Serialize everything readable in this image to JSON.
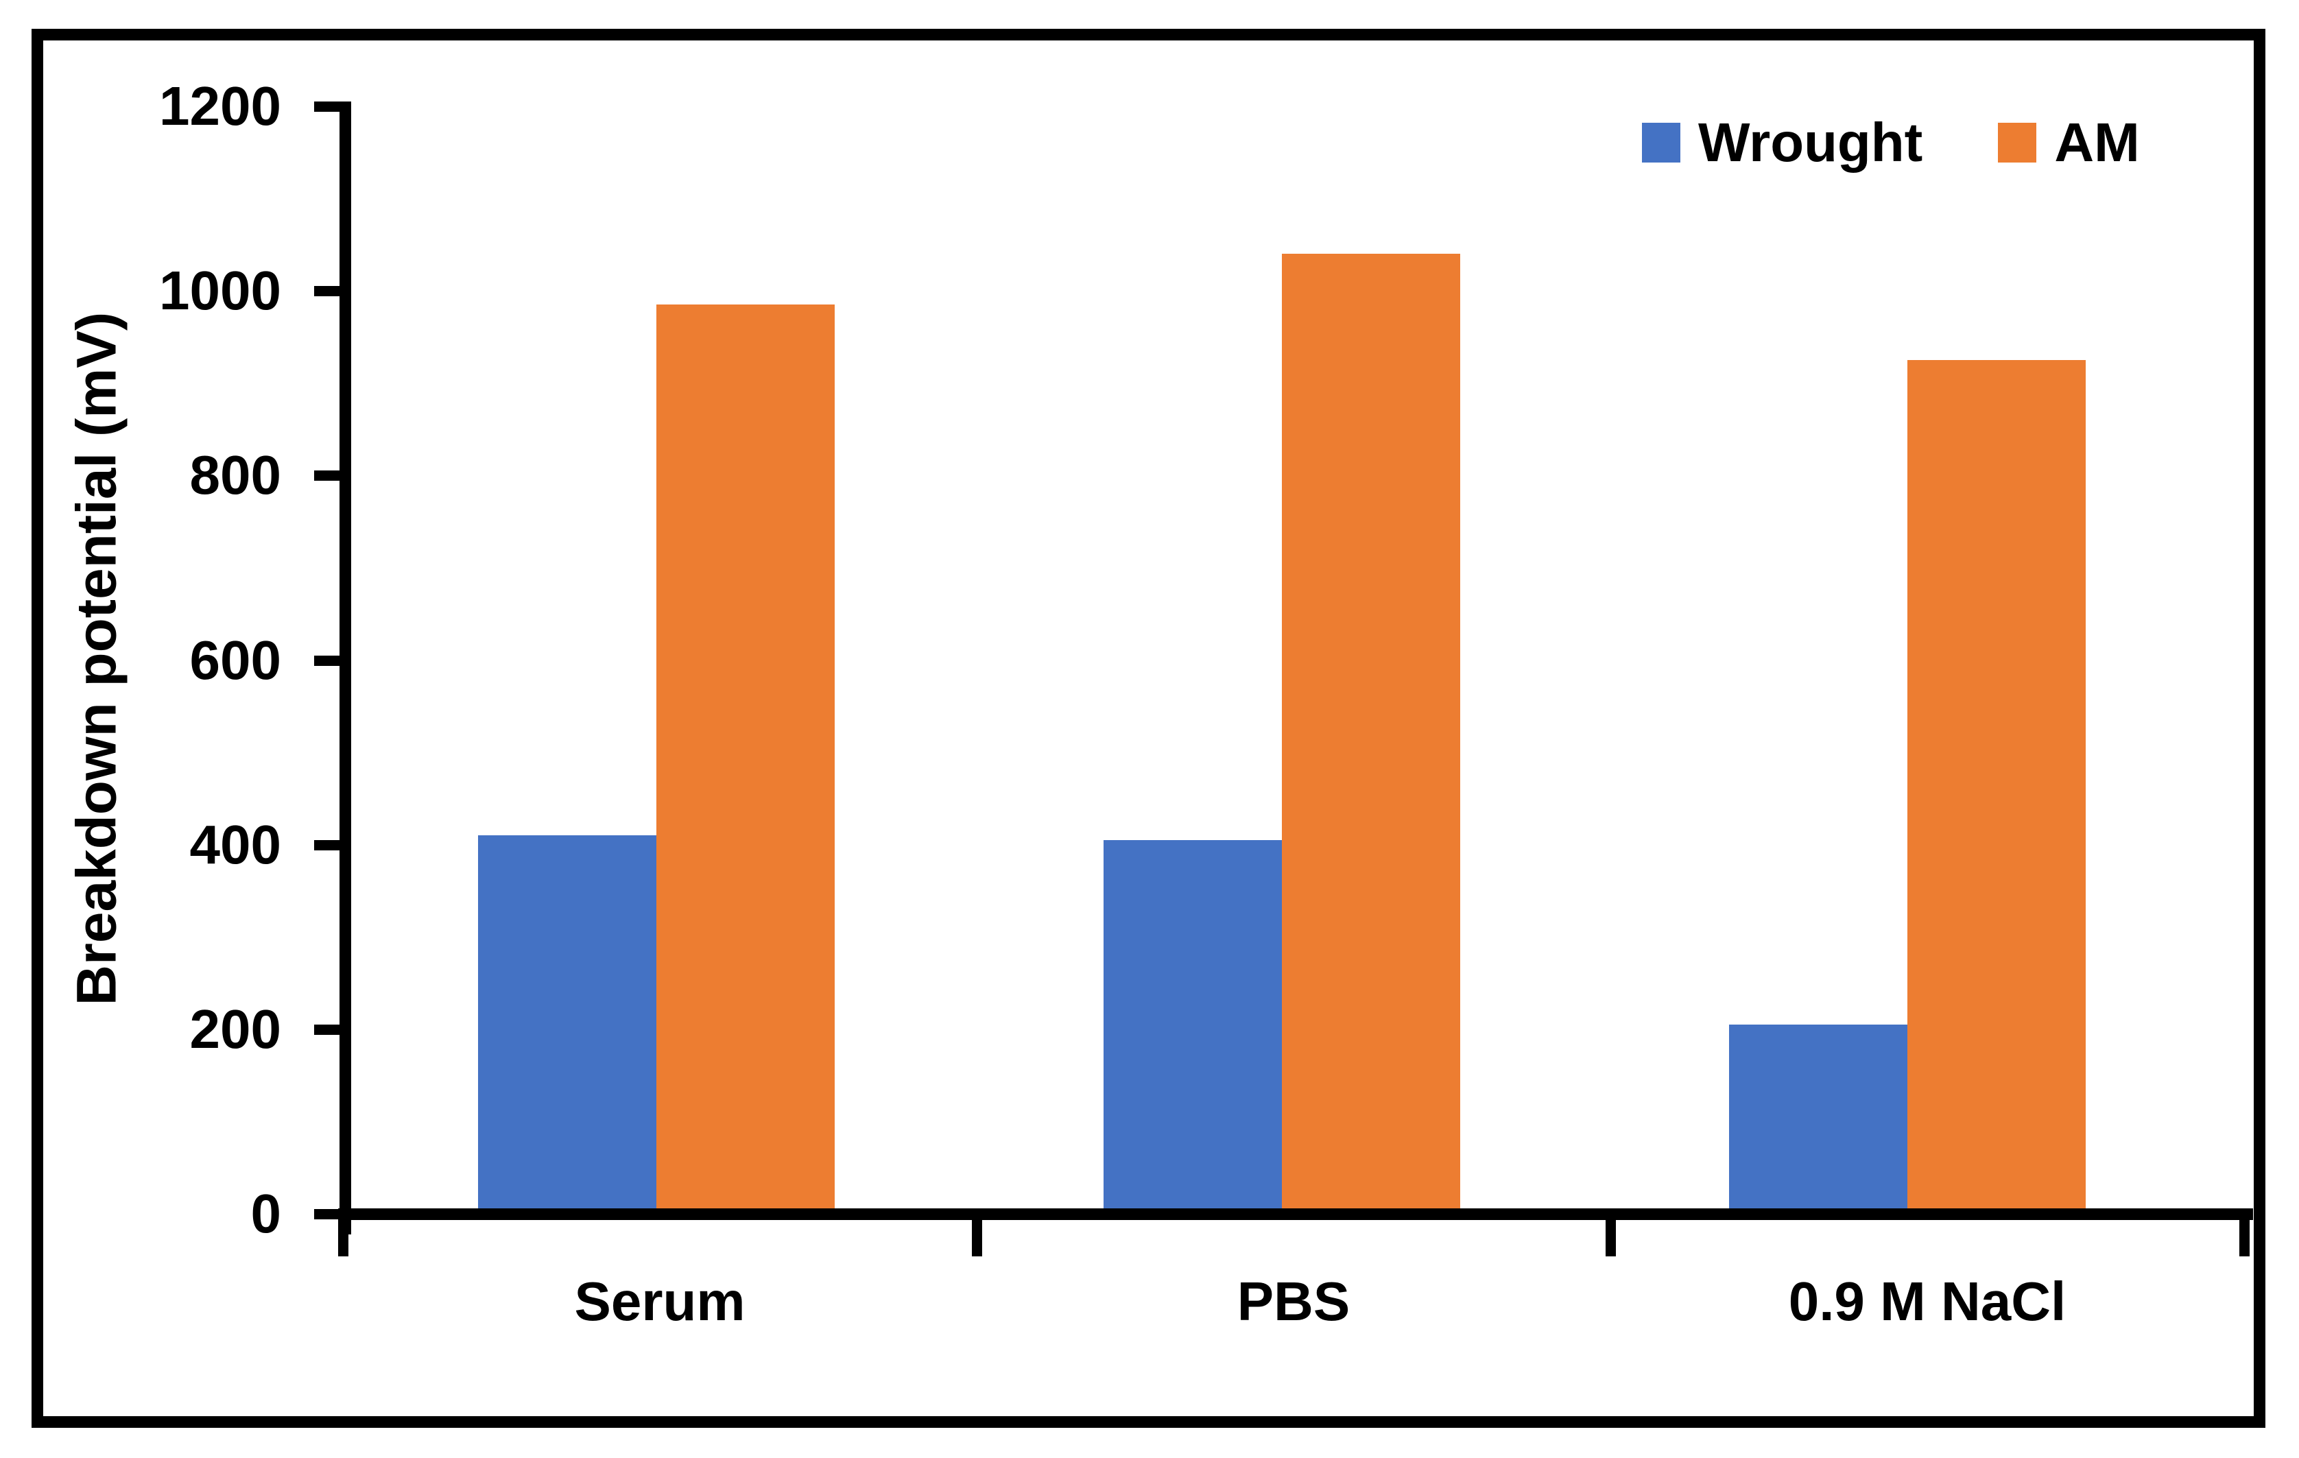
{
  "chart_data": {
    "type": "bar",
    "title": "",
    "categories": [
      "Serum",
      "PBS",
      "0.9 M NaCl"
    ],
    "series": [
      {
        "name": "Wrought",
        "color": "#4472C4",
        "values": [
          410,
          405,
          205
        ]
      },
      {
        "name": "AM",
        "color": "#ED7D31",
        "values": [
          985,
          1040,
          925
        ]
      }
    ],
    "xlabel": "",
    "ylabel": "Breakdown potential (mV)",
    "ylim": [
      0,
      1200
    ],
    "yticks": [
      0,
      200,
      400,
      600,
      800,
      1000,
      1200
    ],
    "grid": false,
    "legend_position": "top-right",
    "axis_color": "#000000",
    "text_color": "#000000",
    "frame_color": "#000000"
  }
}
